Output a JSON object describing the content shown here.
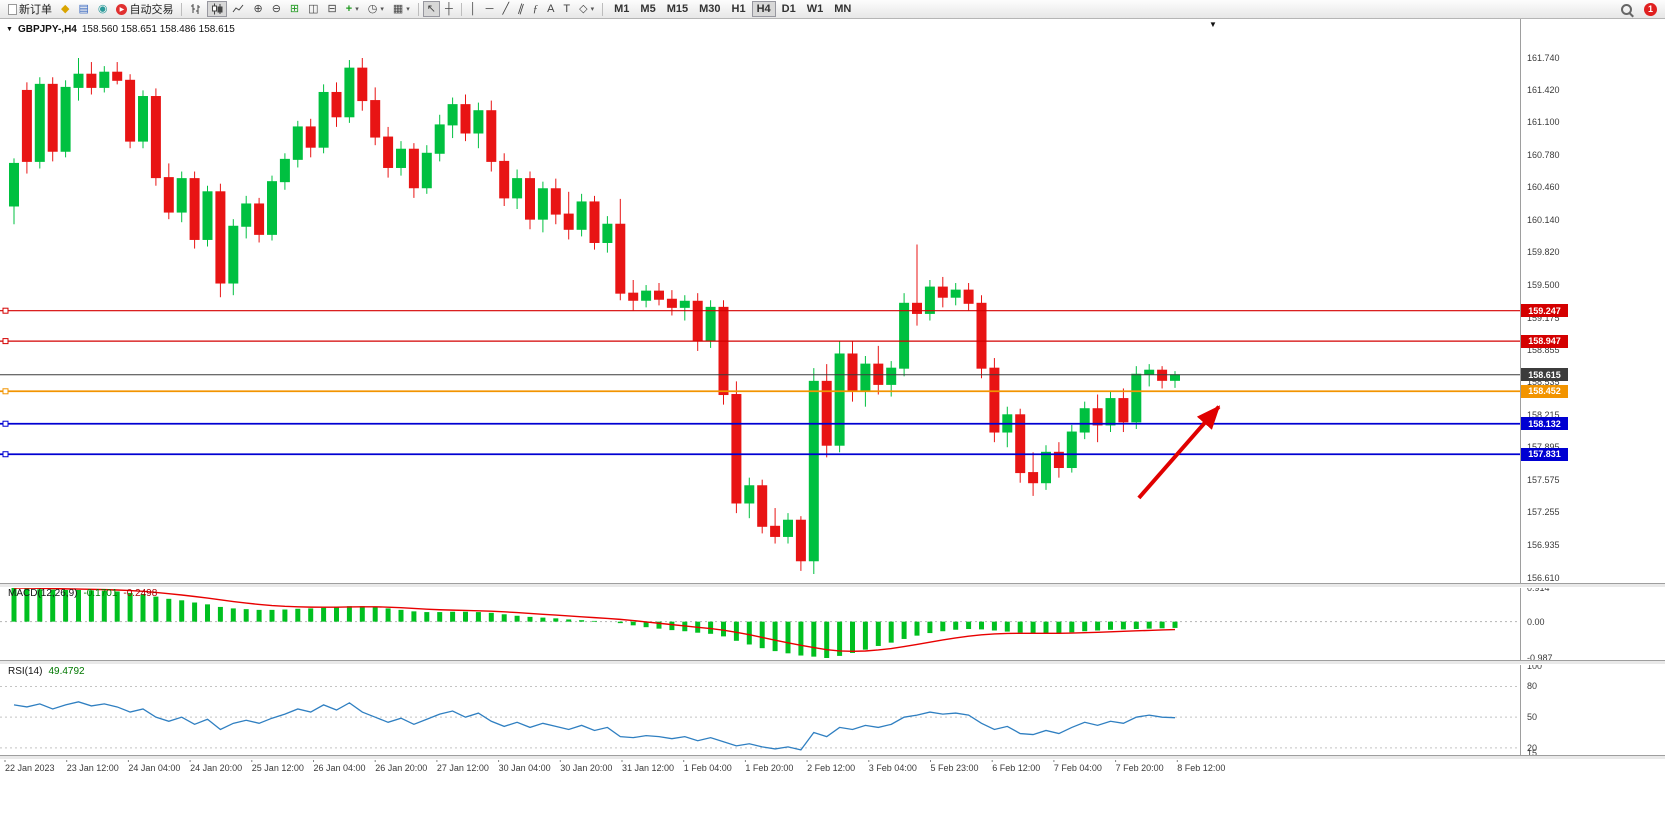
{
  "toolbar": {
    "new_order": "新订单",
    "auto_trading": "自动交易",
    "timeframes": [
      "M1",
      "M5",
      "M15",
      "M30",
      "H1",
      "H4",
      "D1",
      "W1",
      "MN"
    ],
    "active_timeframe": "H4",
    "notification_count": "1"
  },
  "chart": {
    "title": "GBPJPY-,H4",
    "ohlc": "158.560 158.651 158.486 158.615"
  },
  "colors": {
    "bull": "#00c040",
    "bear": "#e81414",
    "hline_red": "#d40000",
    "hline_blue": "#0000d2",
    "hline_orange": "#f29400",
    "bid_line": "#3c3c3c",
    "macd_bar": "#00c020",
    "macd_signal": "#e80000",
    "rsi_line": "#2f7fc1",
    "arrow": "#e00000"
  },
  "chart_data": {
    "type": "candlestick",
    "symbol": "GBPJPY-",
    "period": "H4",
    "price_axis_ticks": [
      "161.740",
      "161.420",
      "161.100",
      "160.780",
      "160.460",
      "160.140",
      "159.820",
      "159.500",
      "159.175",
      "158.855",
      "158.535",
      "158.215",
      "157.895",
      "157.575",
      "157.255",
      "156.935",
      "156.610"
    ],
    "candles": [
      [
        160.28,
        160.75,
        160.1,
        160.7
      ],
      [
        161.42,
        161.5,
        160.6,
        160.72
      ],
      [
        160.72,
        161.55,
        160.65,
        161.48
      ],
      [
        161.48,
        161.55,
        160.72,
        160.82
      ],
      [
        160.82,
        161.52,
        160.76,
        161.45
      ],
      [
        161.45,
        161.74,
        161.32,
        161.58
      ],
      [
        161.58,
        161.7,
        161.38,
        161.45
      ],
      [
        161.45,
        161.66,
        161.4,
        161.6
      ],
      [
        161.6,
        161.7,
        161.48,
        161.52
      ],
      [
        161.52,
        161.58,
        160.85,
        160.92
      ],
      [
        160.92,
        161.42,
        160.85,
        161.36
      ],
      [
        161.36,
        161.44,
        160.48,
        160.56
      ],
      [
        160.56,
        160.7,
        160.15,
        160.22
      ],
      [
        160.22,
        160.62,
        160.12,
        160.55
      ],
      [
        160.55,
        160.62,
        159.86,
        159.95
      ],
      [
        159.95,
        160.48,
        159.88,
        160.42
      ],
      [
        160.42,
        160.5,
        159.38,
        159.52
      ],
      [
        159.52,
        160.15,
        159.4,
        160.08
      ],
      [
        160.08,
        160.38,
        159.96,
        160.3
      ],
      [
        160.3,
        160.36,
        159.92,
        160.0
      ],
      [
        160.0,
        160.58,
        159.94,
        160.52
      ],
      [
        160.52,
        160.8,
        160.44,
        160.74
      ],
      [
        160.74,
        161.12,
        160.66,
        161.06
      ],
      [
        161.06,
        161.14,
        160.76,
        160.86
      ],
      [
        160.86,
        161.48,
        160.8,
        161.4
      ],
      [
        161.4,
        161.5,
        161.06,
        161.16
      ],
      [
        161.16,
        161.72,
        161.1,
        161.64
      ],
      [
        161.64,
        161.74,
        161.22,
        161.32
      ],
      [
        161.32,
        161.45,
        160.88,
        160.96
      ],
      [
        160.96,
        161.06,
        160.56,
        160.66
      ],
      [
        160.66,
        160.92,
        160.58,
        160.84
      ],
      [
        160.84,
        160.9,
        160.36,
        160.46
      ],
      [
        160.46,
        160.88,
        160.4,
        160.8
      ],
      [
        160.8,
        161.18,
        160.72,
        161.08
      ],
      [
        161.08,
        161.35,
        160.95,
        161.28
      ],
      [
        161.28,
        161.38,
        160.92,
        161.0
      ],
      [
        161.0,
        161.3,
        160.85,
        161.22
      ],
      [
        161.22,
        161.32,
        160.62,
        160.72
      ],
      [
        160.72,
        160.8,
        160.28,
        160.36
      ],
      [
        160.36,
        160.64,
        160.25,
        160.55
      ],
      [
        160.55,
        160.62,
        160.05,
        160.15
      ],
      [
        160.15,
        160.52,
        160.02,
        160.45
      ],
      [
        160.45,
        160.55,
        160.1,
        160.2
      ],
      [
        160.2,
        160.42,
        159.95,
        160.05
      ],
      [
        160.05,
        160.4,
        159.98,
        160.32
      ],
      [
        160.32,
        160.38,
        159.85,
        159.92
      ],
      [
        159.92,
        160.18,
        159.82,
        160.1
      ],
      [
        160.1,
        160.35,
        159.35,
        159.42
      ],
      [
        159.42,
        159.55,
        159.25,
        159.35
      ],
      [
        159.35,
        159.5,
        159.28,
        159.44
      ],
      [
        159.44,
        159.52,
        159.3,
        159.36
      ],
      [
        159.36,
        159.45,
        159.2,
        159.28
      ],
      [
        159.28,
        159.4,
        159.15,
        159.34
      ],
      [
        159.34,
        159.42,
        158.85,
        158.95
      ],
      [
        158.95,
        159.35,
        158.88,
        159.28
      ],
      [
        159.28,
        159.35,
        158.32,
        158.42
      ],
      [
        158.42,
        158.55,
        157.25,
        157.35
      ],
      [
        157.35,
        157.6,
        157.2,
        157.52
      ],
      [
        157.52,
        157.58,
        157.05,
        157.12
      ],
      [
        157.12,
        157.3,
        156.95,
        157.02
      ],
      [
        157.02,
        157.25,
        156.95,
        157.18
      ],
      [
        157.18,
        157.22,
        156.68,
        156.78
      ],
      [
        156.78,
        158.68,
        156.65,
        158.55
      ],
      [
        158.55,
        158.72,
        157.8,
        157.92
      ],
      [
        157.92,
        158.95,
        157.85,
        158.82
      ],
      [
        158.82,
        158.95,
        158.35,
        158.45
      ],
      [
        158.45,
        158.8,
        158.3,
        158.72
      ],
      [
        158.72,
        158.9,
        158.42,
        158.52
      ],
      [
        158.52,
        158.75,
        158.4,
        158.68
      ],
      [
        158.68,
        159.42,
        158.6,
        159.32
      ],
      [
        159.32,
        159.9,
        159.1,
        159.22
      ],
      [
        159.22,
        159.55,
        159.15,
        159.48
      ],
      [
        159.48,
        159.58,
        159.28,
        159.38
      ],
      [
        159.38,
        159.52,
        159.3,
        159.45
      ],
      [
        159.45,
        159.52,
        159.25,
        159.32
      ],
      [
        159.32,
        159.4,
        158.58,
        158.68
      ],
      [
        158.68,
        158.78,
        157.95,
        158.05
      ],
      [
        158.05,
        158.3,
        157.9,
        158.22
      ],
      [
        158.22,
        158.28,
        157.55,
        157.65
      ],
      [
        157.65,
        157.85,
        157.42,
        157.55
      ],
      [
        157.55,
        157.92,
        157.48,
        157.85
      ],
      [
        157.85,
        157.95,
        157.6,
        157.7
      ],
      [
        157.7,
        158.12,
        157.65,
        158.05
      ],
      [
        158.05,
        158.35,
        157.98,
        158.28
      ],
      [
        158.28,
        158.42,
        157.95,
        158.12
      ],
      [
        158.12,
        158.45,
        158.05,
        158.38
      ],
      [
        158.38,
        158.48,
        158.05,
        158.15
      ],
      [
        158.15,
        158.7,
        158.08,
        158.62
      ],
      [
        158.62,
        158.72,
        158.5,
        158.66
      ],
      [
        158.66,
        158.7,
        158.48,
        158.56
      ],
      [
        158.56,
        158.651,
        158.486,
        158.615
      ]
    ],
    "hlines": [
      {
        "price": 159.247,
        "label": "159.247",
        "color_key": "hline_red",
        "width": 1.2,
        "handle": true
      },
      {
        "price": 158.947,
        "label": "158.947",
        "color_key": "hline_red",
        "width": 1.2,
        "handle": true
      },
      {
        "price": 158.615,
        "label": "158.615",
        "color_key": "bid_line",
        "width": 1,
        "handle": false
      },
      {
        "price": 158.452,
        "label": "158.452",
        "color_key": "hline_orange",
        "width": 1.8,
        "handle": true
      },
      {
        "price": 158.132,
        "label": "158.132",
        "color_key": "hline_blue",
        "width": 1.8,
        "handle": true
      },
      {
        "price": 157.831,
        "label": "157.831",
        "color_key": "hline_blue",
        "width": 1.8,
        "handle": true
      }
    ],
    "time_labels": [
      "22 Jan 2023",
      "23 Jan 12:00",
      "24 Jan 04:00",
      "24 Jan 20:00",
      "25 Jan 12:00",
      "26 Jan 04:00",
      "26 Jan 20:00",
      "27 Jan 12:00",
      "30 Jan 04:00",
      "30 Jan 20:00",
      "31 Jan 12:00",
      "1 Feb 04:00",
      "1 Feb 20:00",
      "2 Feb 12:00",
      "3 Feb 04:00",
      "5 Feb 23:00",
      "6 Feb 12:00",
      "7 Feb 04:00",
      "7 Feb 20:00",
      "8 Feb 12:00"
    ],
    "indicators": {
      "macd": {
        "label": "MACD(12,26,9)",
        "value_main": "-0.1701",
        "value_signal": "-0.2498",
        "scale_labels": [
          "0.914",
          "0.00",
          "-0.987"
        ],
        "max": 0.914,
        "min": -0.987,
        "values": [
          0.914,
          0.9,
          0.88,
          0.87,
          0.86,
          0.86,
          0.85,
          0.84,
          0.82,
          0.78,
          0.74,
          0.68,
          0.62,
          0.58,
          0.52,
          0.47,
          0.4,
          0.36,
          0.34,
          0.32,
          0.32,
          0.33,
          0.35,
          0.36,
          0.38,
          0.4,
          0.42,
          0.42,
          0.4,
          0.36,
          0.32,
          0.28,
          0.26,
          0.26,
          0.27,
          0.27,
          0.26,
          0.24,
          0.2,
          0.16,
          0.13,
          0.11,
          0.09,
          0.06,
          0.04,
          0.02,
          0.0,
          -0.04,
          -0.1,
          -0.15,
          -0.19,
          -0.23,
          -0.26,
          -0.3,
          -0.33,
          -0.4,
          -0.52,
          -0.62,
          -0.72,
          -0.8,
          -0.86,
          -0.92,
          -0.95,
          -0.987,
          -0.93,
          -0.85,
          -0.76,
          -0.66,
          -0.57,
          -0.47,
          -0.38,
          -0.31,
          -0.26,
          -0.22,
          -0.2,
          -0.21,
          -0.24,
          -0.27,
          -0.3,
          -0.32,
          -0.32,
          -0.31,
          -0.29,
          -0.26,
          -0.24,
          -0.22,
          -0.21,
          -0.2,
          -0.19,
          -0.18,
          -0.1701
        ]
      },
      "rsi": {
        "label": "RSI(14)",
        "value": "49.4792",
        "scale_labels": [
          "100",
          "80",
          "50",
          "20",
          "15"
        ],
        "range": [
          15,
          100
        ],
        "levels": [
          80,
          50,
          20
        ],
        "values": [
          62,
          60,
          63,
          58,
          62,
          65,
          61,
          63,
          60,
          55,
          58,
          50,
          46,
          50,
          43,
          48,
          38,
          44,
          47,
          44,
          49,
          53,
          58,
          55,
          62,
          57,
          64,
          55,
          50,
          45,
          49,
          43,
          48,
          53,
          56,
          50,
          54,
          46,
          41,
          45,
          40,
          44,
          41,
          38,
          42,
          37,
          40,
          31,
          30,
          32,
          31,
          29,
          31,
          27,
          30,
          26,
          22,
          24,
          21,
          19,
          21,
          18,
          35,
          31,
          40,
          38,
          42,
          40,
          43,
          50,
          52,
          55,
          53,
          54,
          52,
          44,
          38,
          41,
          34,
          33,
          37,
          34,
          40,
          45,
          42,
          46,
          44,
          50,
          52,
          50,
          49.4792
        ]
      }
    },
    "annotations": [
      {
        "type": "arrow",
        "from_index": 87.2,
        "from_price": 157.4,
        "to_index": 93.4,
        "to_price": 158.3
      }
    ]
  }
}
